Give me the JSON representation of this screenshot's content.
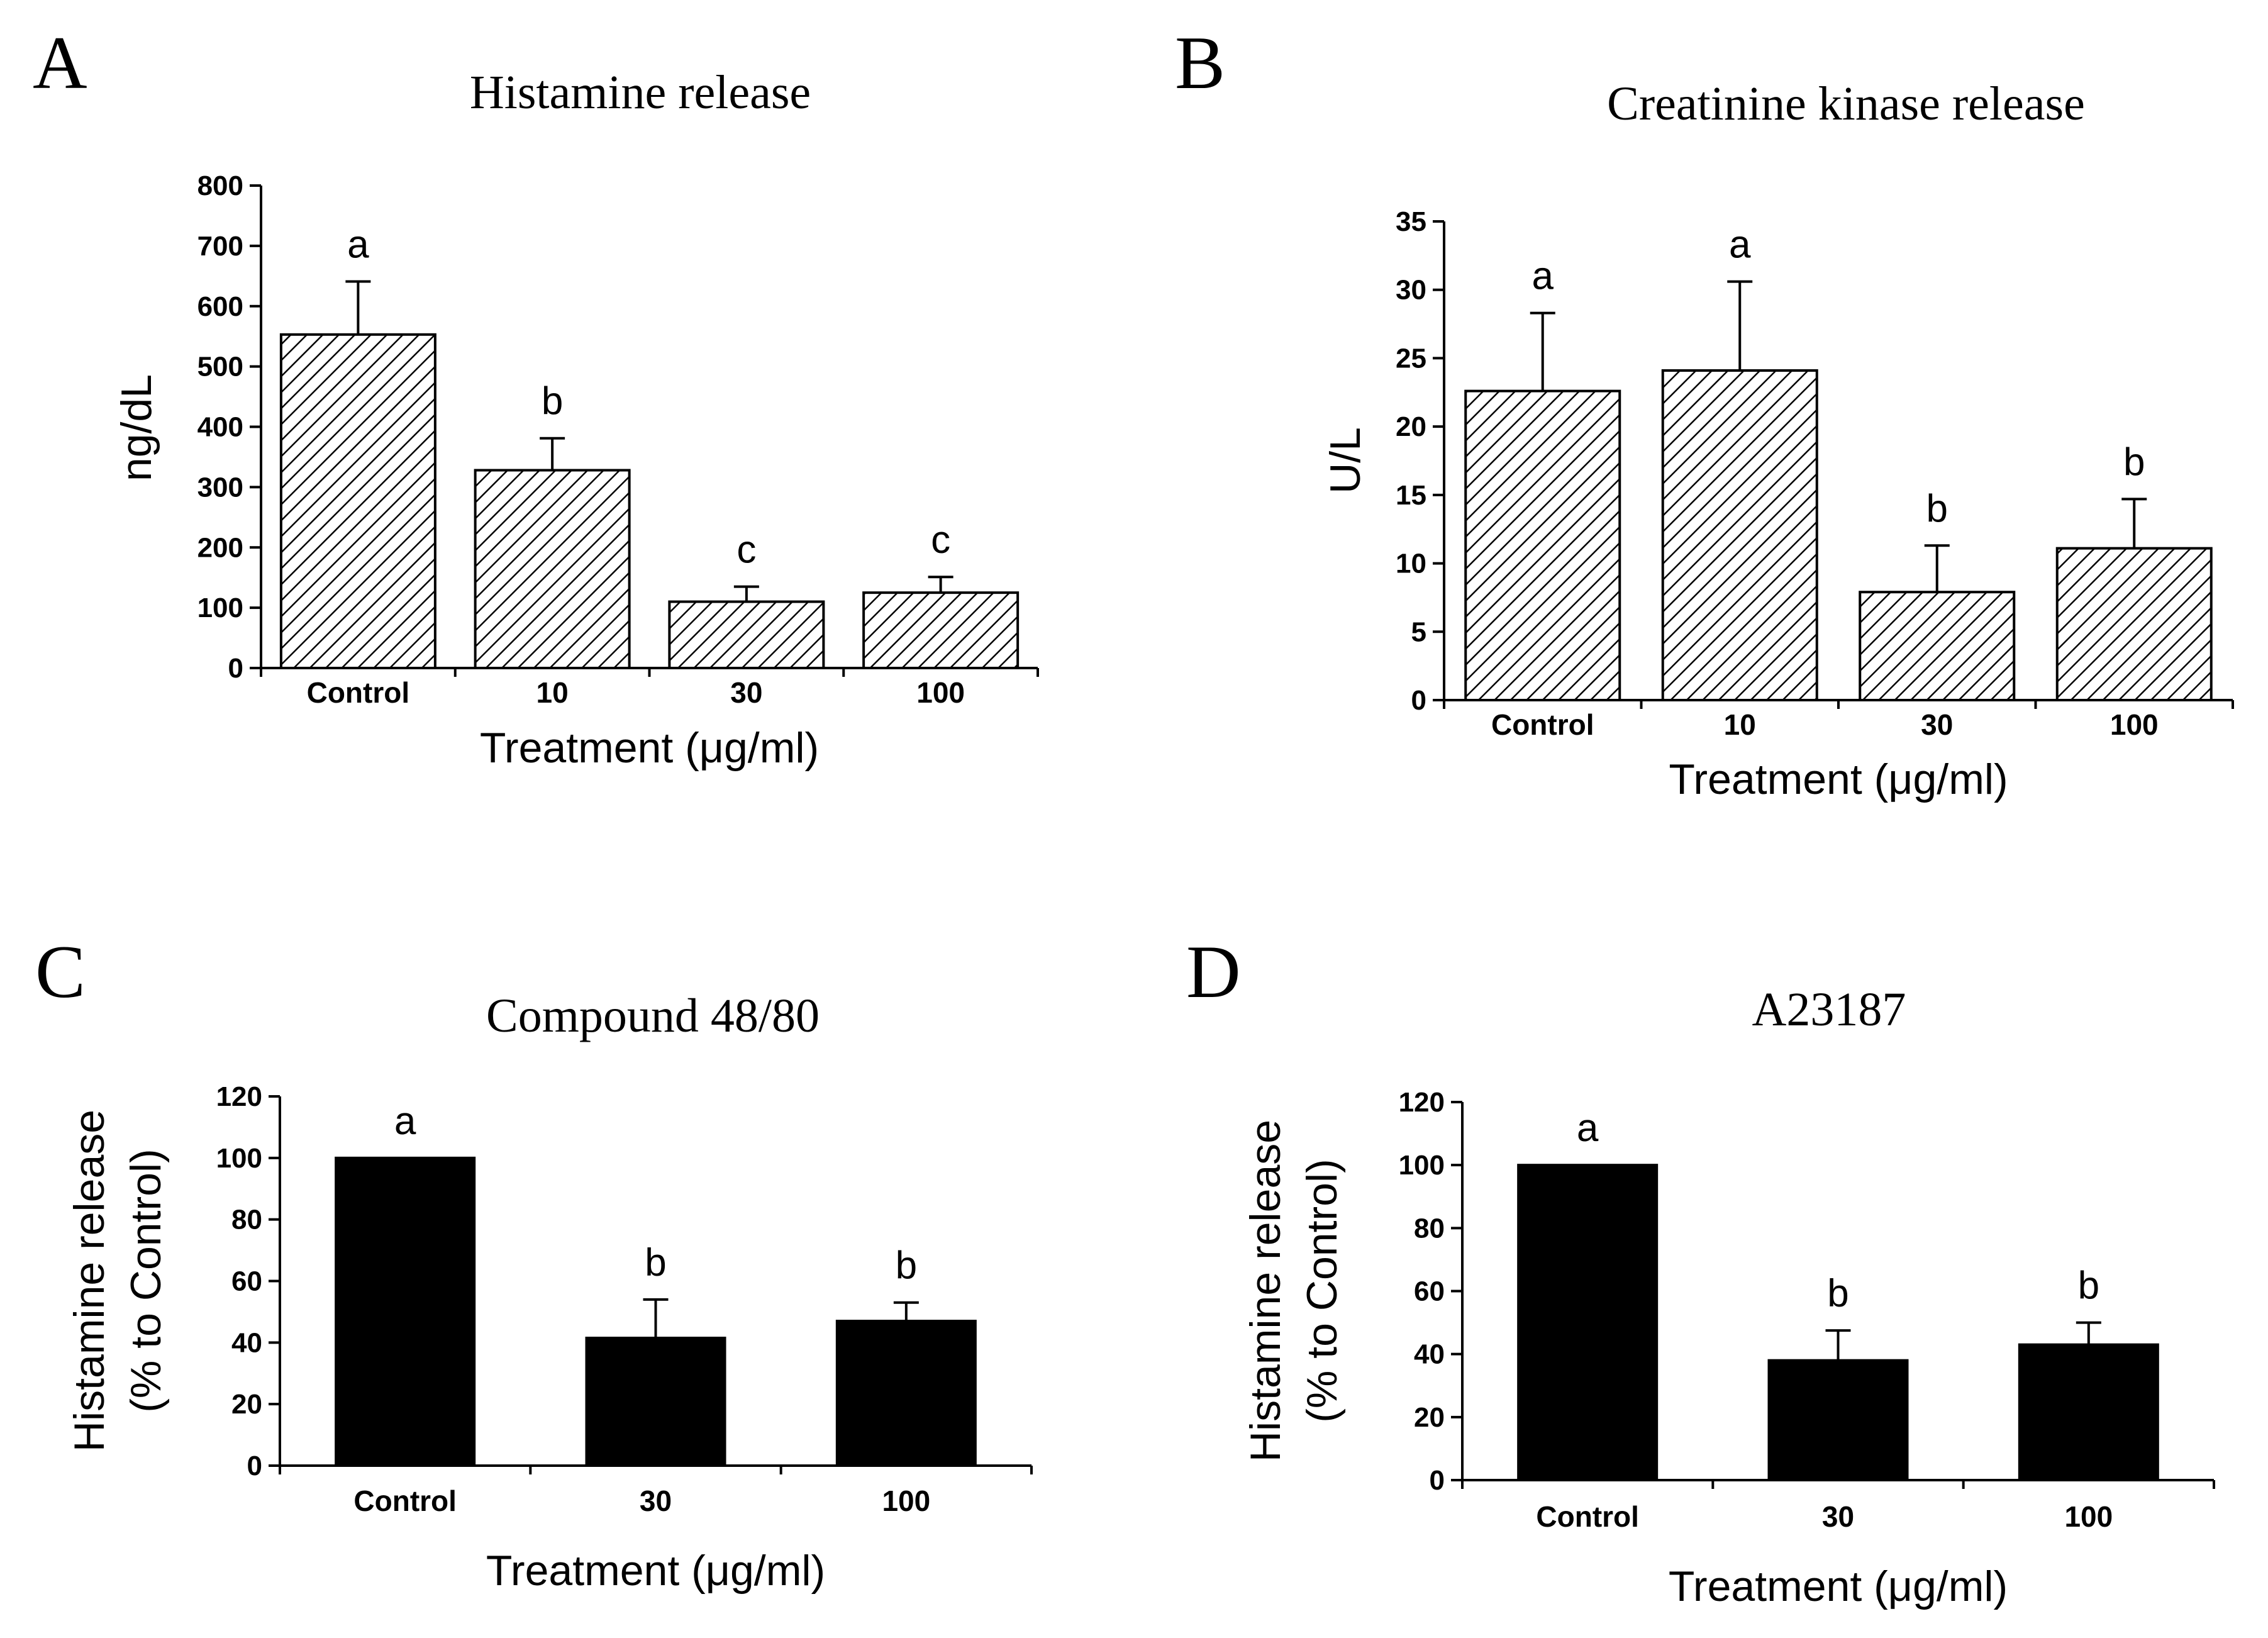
{
  "colors": {
    "ink": "#000000",
    "background": "#ffffff",
    "hatch": "#000000",
    "solid_fill": "#000000"
  },
  "chart_data": [
    {
      "panel": "A",
      "type": "bar",
      "fill": "hatched",
      "title": "Histamine release",
      "xlabel": "Treatment (μg/ml)",
      "ylabel": "ng/dL",
      "categories": [
        "Control",
        "10",
        "30",
        "100"
      ],
      "values": [
        553,
        328,
        110,
        125
      ],
      "errors": [
        88,
        53,
        25,
        26
      ],
      "letters": [
        "a",
        "b",
        "c",
        "c"
      ],
      "ylim": [
        0,
        800
      ],
      "yticks": [
        0,
        100,
        200,
        300,
        400,
        500,
        600,
        700,
        800
      ],
      "ytick_labels": [
        "0",
        "100",
        "200",
        "300",
        "400",
        "500",
        "600",
        "700",
        "800"
      ],
      "grid": false
    },
    {
      "panel": "B",
      "type": "bar",
      "fill": "hatched",
      "title": "Creatinine kinase release",
      "xlabel": "Treatment (μg/ml)",
      "ylabel": "U/L",
      "categories": [
        "Control",
        "10",
        "30",
        "100"
      ],
      "values": [
        22.6,
        24.1,
        7.9,
        11.1
      ],
      "errors": [
        5.7,
        6.5,
        3.4,
        3.6
      ],
      "letters": [
        "a",
        "a",
        "b",
        "b"
      ],
      "ylim": [
        0,
        35
      ],
      "yticks": [
        0,
        5,
        10,
        15,
        20,
        25,
        30,
        35
      ],
      "ytick_labels": [
        "0",
        "5",
        "10",
        "15",
        "20",
        "25",
        "30",
        "35"
      ],
      "grid": false
    },
    {
      "panel": "C",
      "type": "bar",
      "fill": "solid",
      "title": "Compound 48/80",
      "xlabel": "Treatment (μg/ml)",
      "ylabel": "Histamine release",
      "ylabel2": "(% to Control)",
      "categories": [
        "Control",
        "30",
        "100"
      ],
      "values": [
        100,
        41.5,
        47
      ],
      "errors": [
        0,
        12.5,
        6
      ],
      "letters": [
        "a",
        "b",
        "b"
      ],
      "ylim": [
        0,
        120
      ],
      "yticks": [
        0,
        20,
        40,
        60,
        80,
        100,
        120
      ],
      "ytick_labels": [
        "0",
        "20",
        "40",
        "60",
        "80",
        "100",
        "120"
      ],
      "grid": false
    },
    {
      "panel": "D",
      "type": "bar",
      "fill": "solid",
      "title": "A23187",
      "xlabel": "Treatment (μg/ml)",
      "ylabel": "Histamine release",
      "ylabel2": "(% to Control)",
      "categories": [
        "Control",
        "30",
        "100"
      ],
      "values": [
        100,
        38,
        43
      ],
      "errors": [
        0,
        9.5,
        7
      ],
      "letters": [
        "a",
        "b",
        "b"
      ],
      "ylim": [
        0,
        120
      ],
      "yticks": [
        0,
        20,
        40,
        60,
        80,
        100,
        120
      ],
      "ytick_labels": [
        "0",
        "20",
        "40",
        "60",
        "80",
        "100",
        "120"
      ],
      "grid": false
    }
  ]
}
